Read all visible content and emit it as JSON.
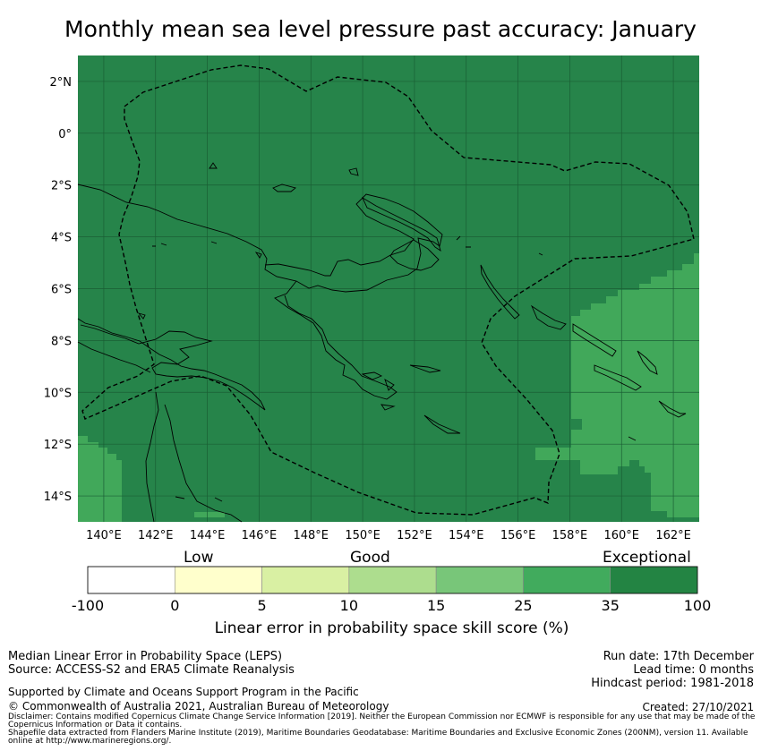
{
  "title": "Monthly mean sea level pressure past accuracy: January",
  "map": {
    "lat_labels": [
      "2°N",
      "0°",
      "2°S",
      "4°S",
      "6°S",
      "8°S",
      "10°S",
      "12°S",
      "14°S"
    ],
    "lon_labels": [
      "140°E",
      "142°E",
      "144°E",
      "146°E",
      "148°E",
      "150°E",
      "152°E",
      "154°E",
      "156°E",
      "158°E",
      "160°E",
      "162°E"
    ],
    "extent": {
      "lon_min": 139,
      "lon_max": 163,
      "lat_min": -15,
      "lat_max": 3
    },
    "colors": {
      "exceptional_dark": "#26844a",
      "exceptional_light": "#41a85a",
      "pale": "#7ac87a",
      "grid": "#1a5e34",
      "coast": "#000000"
    }
  },
  "colorbar": {
    "categories": [
      "Low",
      "Good",
      "Exceptional"
    ],
    "ticks": [
      "-100",
      "0",
      "5",
      "10",
      "15",
      "25",
      "35",
      "100"
    ],
    "colors": [
      "#ffffff",
      "#ffffcc",
      "#d9f0a3",
      "#addd8e",
      "#78c679",
      "#41ab5d",
      "#238443"
    ],
    "label": "Linear error in probability space skill score (%)"
  },
  "footer": {
    "method": "Median Linear Error in Probability Space (LEPS)",
    "source": "Source: ACCESS-S2 and ERA5 Climate Reanalysis",
    "support": "Supported by Climate and Oceans Support Program in the Pacific",
    "copyright": "© Commonwealth of Australia 2021, Australian Bureau of Meteorology",
    "disclaimer": "Disclaimer: Contains modified Copernicus Climate Change Service Information [2019]. Neither the European Commission nor ECMWF is responsible for any use that may be made of the Copernicus Information or Data it contains.",
    "shapefile": "Shapefile data extracted from Flanders Marine Institute (2019), Maritime Boundaries Geodatabase: Maritime Boundaries and Exclusive Economic Zones (200NM), version 11. Available online at http://www.marineregions.org/.",
    "run_date": "Run date: 17th December",
    "lead_time": "Lead time: 0 months",
    "hindcast": "Hindcast period: 1981-2018",
    "created": "Created: 27/10/2021"
  }
}
